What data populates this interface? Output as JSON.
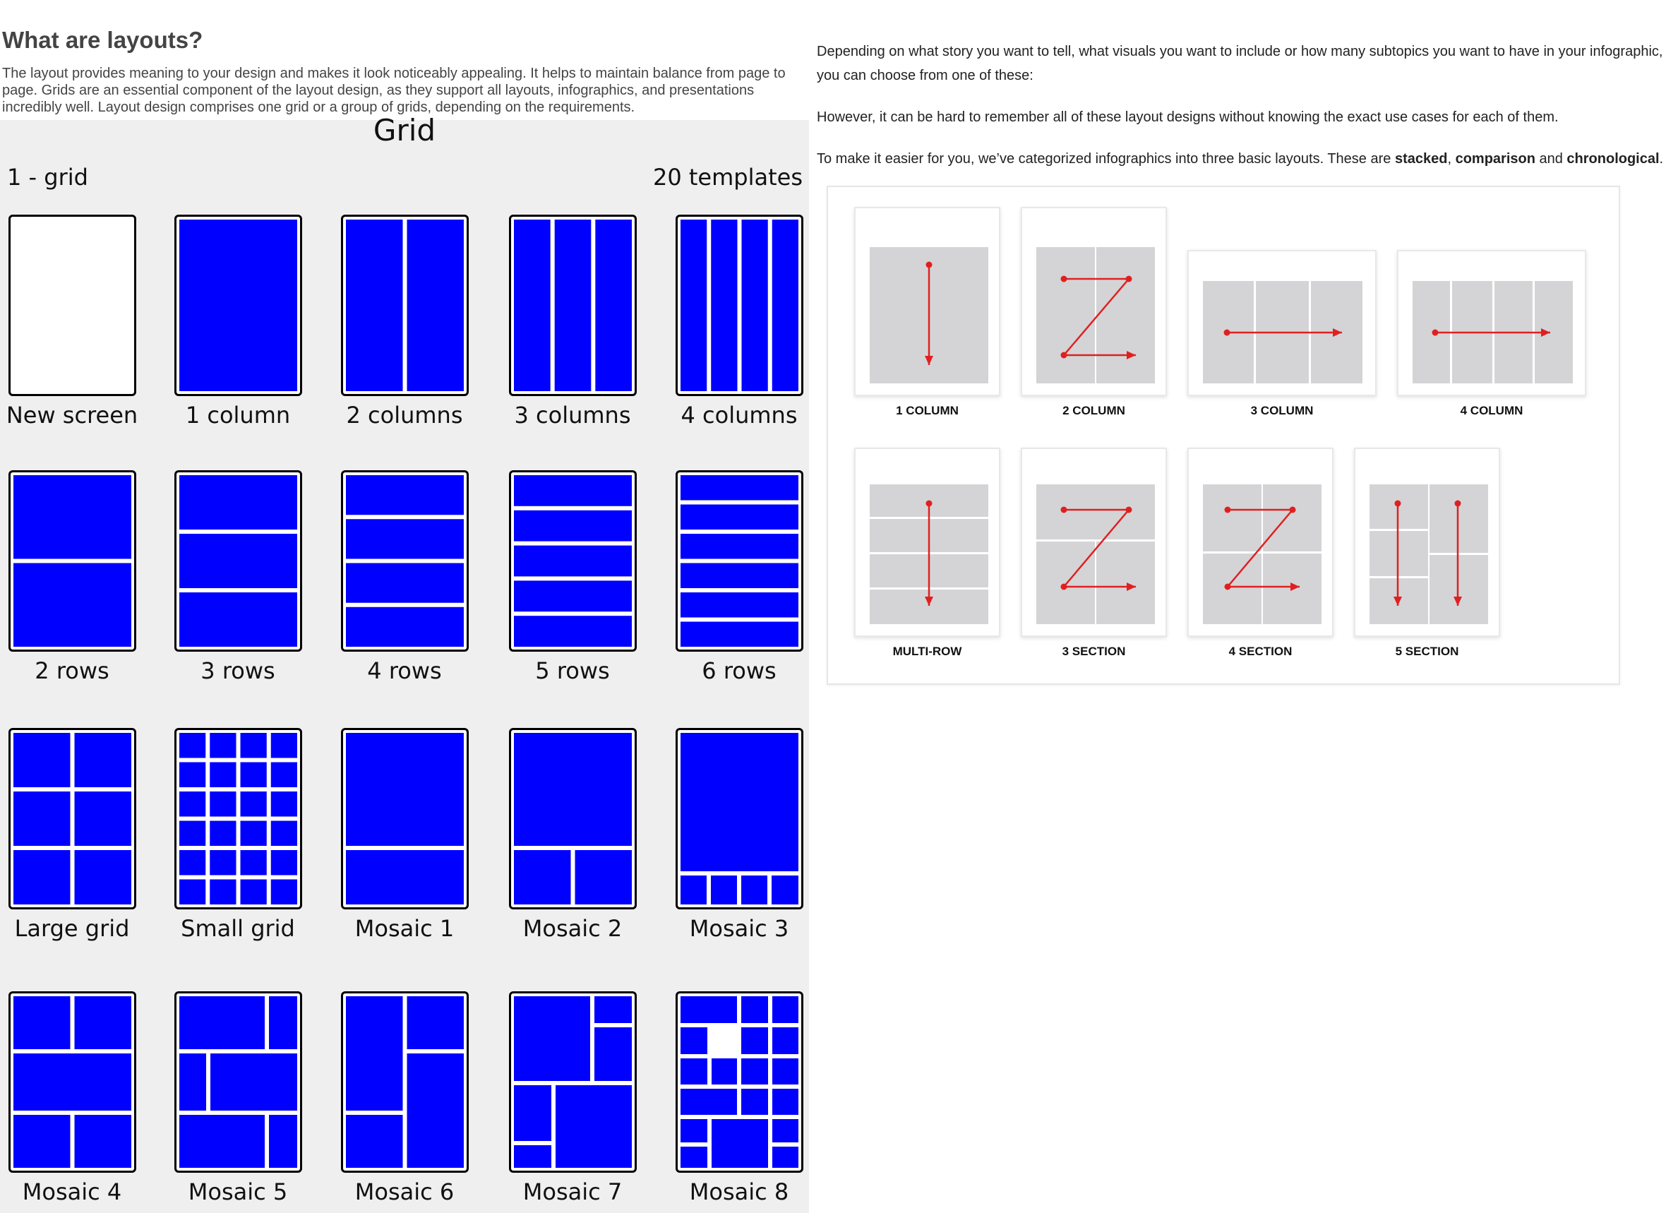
{
  "article": {
    "title": "What are layouts?",
    "intro": "The layout provides meaning to your design and makes it look noticeably appealing. It helps to maintain balance from page to page. Grids are an essential component of the layout design, as they support all layouts, infographics, and presentations incredibly well. Layout design comprises one grid or a group of grids, depending on the requirements."
  },
  "grid_panel": {
    "title": "Grid",
    "subtitle_left": "1 - grid",
    "subtitle_right": "20 templates",
    "templates": [
      {
        "label": "New screen"
      },
      {
        "label": "1 column"
      },
      {
        "label": "2 columns"
      },
      {
        "label": "3 columns"
      },
      {
        "label": "4 columns"
      },
      {
        "label": "2 rows"
      },
      {
        "label": "3 rows"
      },
      {
        "label": "4 rows"
      },
      {
        "label": "5 rows"
      },
      {
        "label": "6 rows"
      },
      {
        "label": "Large grid"
      },
      {
        "label": "Small grid"
      },
      {
        "label": "Mosaic 1"
      },
      {
        "label": "Mosaic 2"
      },
      {
        "label": "Mosaic 3"
      },
      {
        "label": "Mosaic 4"
      },
      {
        "label": "Mosaic 5"
      },
      {
        "label": "Mosaic 6"
      },
      {
        "label": "Mosaic 7"
      },
      {
        "label": "Mosaic 8"
      }
    ]
  },
  "right_text": {
    "p1": "Depending on what story you want to tell, what visuals you want to include or how many subtopics you want to have in your infographic, you can choose from one of these:",
    "p2": "However, it can be hard to remember all of these layout designs without knowing the exact use cases for each of them.",
    "p3_prefix": "To make it easier for you, we’ve categorized infographics into three basic layouts. These are ",
    "p3_b1": "stacked",
    "p3_sep1": ", ",
    "p3_b2": "comparison",
    "p3_sep2": " and ",
    "p3_b3": "chronological",
    "p3_end": "."
  },
  "layout_diagram": {
    "items": [
      {
        "label": "1 COLUMN"
      },
      {
        "label": "2 COLUMN"
      },
      {
        "label": "3 COLUMN"
      },
      {
        "label": "4 COLUMN"
      },
      {
        "label": "MULTI-ROW"
      },
      {
        "label": "3 SECTION"
      },
      {
        "label": "4 SECTION"
      },
      {
        "label": "5 SECTION"
      }
    ]
  },
  "colors": {
    "template_fill": "#0000ff",
    "arrow": "#e02020",
    "panel_gray": "#d4d4d6",
    "panel_bg": "#efefef"
  }
}
